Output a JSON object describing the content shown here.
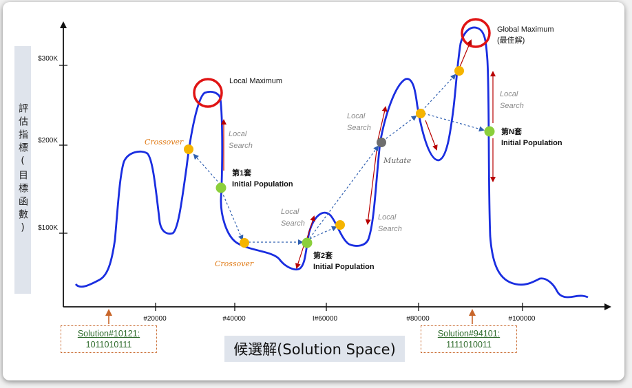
{
  "y_axis": {
    "title": "評估指標(目標函數)",
    "ticks": [
      "$300K",
      "$200K",
      "$100K"
    ]
  },
  "x_axis": {
    "title": "候選解(Solution Space)",
    "ticks": [
      "#20000",
      "#40000",
      "I#60000",
      "#80000",
      "#100000"
    ]
  },
  "solutions": [
    {
      "name": "Solution#10121:",
      "code": "1011010111"
    },
    {
      "name": "Solution#94101:",
      "code": "1111010011"
    }
  ],
  "annotations": {
    "local_max": "Local Maximum",
    "global_max_1": "Global Maximum",
    "global_max_2": "(最佳解)",
    "crossover_1": "Crossover",
    "crossover_2": "Crossover",
    "mutate": "Mutate",
    "ls1_a": "Local",
    "ls1_b": "Search",
    "ls2_a": "Local",
    "ls2_b": "Search",
    "ls3_a": "Local",
    "ls3_b": "Search",
    "ls4_a": "Local",
    "ls4_b": "Search",
    "ls5_a": "Local",
    "ls5_b": "Search",
    "pop1_a": "第1套",
    "pop1_b": "Initial Population",
    "pop2_a": "第2套",
    "pop2_b": "Initial Population",
    "popn_a": "第N套",
    "popn_b": "Initial Population"
  },
  "colors": {
    "curve": "#1a2ee0",
    "green_point": "#8bcf3b",
    "orange_point": "#f5b400",
    "gray_point": "#6e6e6e",
    "circle": "#e01414",
    "search_arrow": "#b80000",
    "dotted_arrow": "#2f5fb0"
  }
}
